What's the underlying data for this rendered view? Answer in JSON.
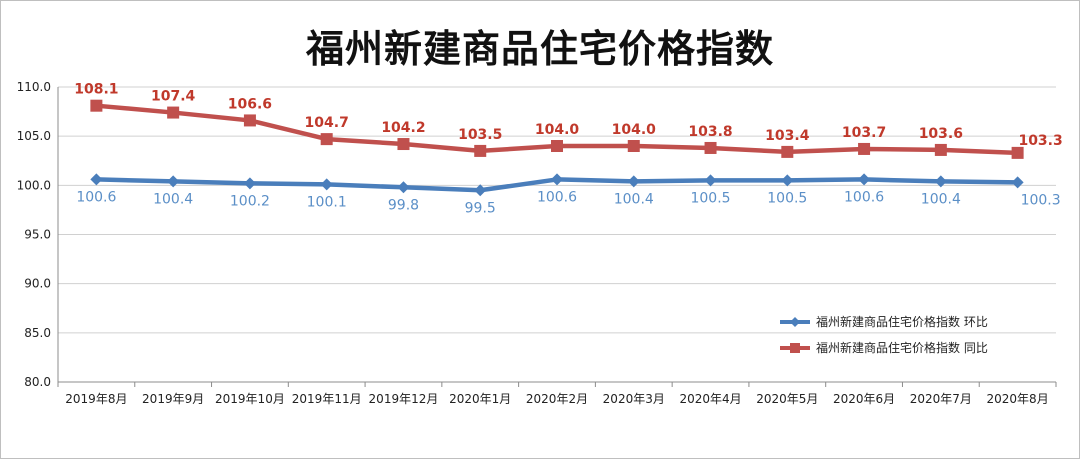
{
  "chart_data": {
    "type": "line",
    "title": "福州新建商品住宅价格指数",
    "categories": [
      "2019年8月",
      "2019年9月",
      "2019年10月",
      "2019年11月",
      "2019年12月",
      "2020年1月",
      "2020年2月",
      "2020年3月",
      "2020年4月",
      "2020年5月",
      "2020年6月",
      "2020年7月",
      "2020年8月"
    ],
    "series": [
      {
        "name": "福州新建商品住宅价格指数 环比",
        "color": "#4a7ebb",
        "values": [
          100.6,
          100.4,
          100.2,
          100.1,
          99.8,
          99.5,
          100.6,
          100.4,
          100.5,
          100.5,
          100.6,
          100.4,
          100.3
        ],
        "labels": [
          "100.6",
          "100.4",
          "100.2",
          "100.1",
          "99.8",
          "99.5",
          "100.6",
          "100.4",
          "100.5",
          "100.5",
          "100.6",
          "100.4",
          "100.3"
        ]
      },
      {
        "name": "福州新建商品住宅价格指数 同比",
        "color": "#c0504d",
        "values": [
          108.1,
          107.4,
          106.6,
          104.7,
          104.2,
          103.5,
          104.0,
          104.0,
          103.8,
          103.4,
          103.7,
          103.6,
          103.3
        ],
        "labels": [
          "108.1",
          "107.4",
          "106.6",
          "104.7",
          "104.2",
          "103.5",
          "104.0",
          "104.0",
          "103.8",
          "103.4",
          "103.7",
          "103.6",
          "103.3"
        ]
      }
    ],
    "ylim": [
      80,
      110
    ],
    "yticks": [
      "80.0",
      "85.0",
      "90.0",
      "95.0",
      "100.0",
      "105.0",
      "110.0"
    ],
    "grid": true,
    "legend": "bottom-right"
  }
}
